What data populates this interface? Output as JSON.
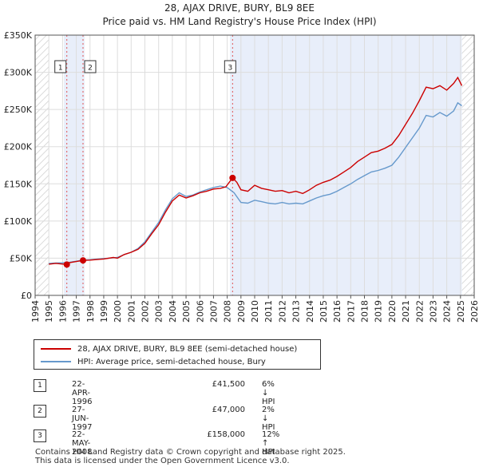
{
  "title_line1": "28, AJAX DRIVE, BURY, BL9 8EE",
  "title_line2": "Price paid vs. HM Land Registry's House Price Index (HPI)",
  "chart_data": {
    "type": "line",
    "y_ticks": [
      {
        "v": 0,
        "label": "£0"
      },
      {
        "v": 50000,
        "label": "£50K"
      },
      {
        "v": 100000,
        "label": "£100K"
      },
      {
        "v": 150000,
        "label": "£150K"
      },
      {
        "v": 200000,
        "label": "£200K"
      },
      {
        "v": 250000,
        "label": "£250K"
      },
      {
        "v": 300000,
        "label": "£300K"
      },
      {
        "v": 350000,
        "label": "£350K"
      }
    ],
    "x_ticks": [
      "1994",
      "1995",
      "1996",
      "1997",
      "1998",
      "1999",
      "2000",
      "2001",
      "2002",
      "2003",
      "2004",
      "2005",
      "2006",
      "2007",
      "2008",
      "2009",
      "2010",
      "2011",
      "2012",
      "2013",
      "2014",
      "2015",
      "2016",
      "2017",
      "2018",
      "2019",
      "2020",
      "2021",
      "2022",
      "2023",
      "2024",
      "2025",
      "2026"
    ],
    "xlim": [
      1994,
      2026
    ],
    "ylim": [
      0,
      350000
    ],
    "grid": true,
    "series": [
      {
        "name": "28, AJAX DRIVE, BURY, BL9 8EE (semi-detached house)",
        "color": "#cc0000",
        "points": [
          [
            1995.0,
            42000
          ],
          [
            1995.5,
            43000
          ],
          [
            1996.31,
            41500
          ],
          [
            1996.5,
            44000
          ],
          [
            1997.0,
            45500
          ],
          [
            1997.49,
            47000
          ],
          [
            1998.0,
            47500
          ],
          [
            1999.0,
            49000
          ],
          [
            1999.7,
            51000
          ],
          [
            2000.0,
            50000
          ],
          [
            2000.5,
            55000
          ],
          [
            2001.0,
            58000
          ],
          [
            2001.5,
            62000
          ],
          [
            2002.0,
            70000
          ],
          [
            2002.5,
            83000
          ],
          [
            2003.0,
            95000
          ],
          [
            2003.5,
            112000
          ],
          [
            2004.0,
            127000
          ],
          [
            2004.5,
            135000
          ],
          [
            2005.0,
            131000
          ],
          [
            2005.5,
            134000
          ],
          [
            2006.0,
            138000
          ],
          [
            2006.5,
            140000
          ],
          [
            2007.0,
            143000
          ],
          [
            2007.5,
            144000
          ],
          [
            2007.9,
            146000
          ],
          [
            2008.39,
            158000
          ],
          [
            2008.7,
            152000
          ],
          [
            2009.0,
            142000
          ],
          [
            2009.5,
            140000
          ],
          [
            2010.0,
            148000
          ],
          [
            2010.5,
            144000
          ],
          [
            2011.0,
            142000
          ],
          [
            2011.5,
            140000
          ],
          [
            2012.0,
            141000
          ],
          [
            2012.5,
            138000
          ],
          [
            2013.0,
            140000
          ],
          [
            2013.5,
            137000
          ],
          [
            2014.0,
            142000
          ],
          [
            2014.5,
            148000
          ],
          [
            2015.0,
            152000
          ],
          [
            2015.5,
            155000
          ],
          [
            2016.0,
            160000
          ],
          [
            2016.5,
            166000
          ],
          [
            2017.0,
            172000
          ],
          [
            2017.5,
            180000
          ],
          [
            2018.0,
            186000
          ],
          [
            2018.5,
            192000
          ],
          [
            2019.0,
            194000
          ],
          [
            2019.5,
            198000
          ],
          [
            2020.0,
            203000
          ],
          [
            2020.5,
            215000
          ],
          [
            2021.0,
            230000
          ],
          [
            2021.5,
            245000
          ],
          [
            2022.0,
            262000
          ],
          [
            2022.5,
            280000
          ],
          [
            2023.0,
            278000
          ],
          [
            2023.5,
            282000
          ],
          [
            2024.0,
            276000
          ],
          [
            2024.5,
            285000
          ],
          [
            2024.8,
            293000
          ],
          [
            2025.1,
            282000
          ]
        ]
      },
      {
        "name": "HPI: Average price, semi-detached house, Bury",
        "color": "#6699cc",
        "points": [
          [
            1995.0,
            43000
          ],
          [
            1995.5,
            43500
          ],
          [
            1996.0,
            43800
          ],
          [
            1996.5,
            44500
          ],
          [
            1997.0,
            46000
          ],
          [
            1997.5,
            47500
          ],
          [
            1998.0,
            48000
          ],
          [
            1999.0,
            49500
          ],
          [
            2000.0,
            51000
          ],
          [
            2000.5,
            55000
          ],
          [
            2001.0,
            58000
          ],
          [
            2001.5,
            63000
          ],
          [
            2002.0,
            72000
          ],
          [
            2002.5,
            85000
          ],
          [
            2003.0,
            98000
          ],
          [
            2003.5,
            115000
          ],
          [
            2004.0,
            130000
          ],
          [
            2004.5,
            138000
          ],
          [
            2005.0,
            133000
          ],
          [
            2005.5,
            135000
          ],
          [
            2006.0,
            139000
          ],
          [
            2006.5,
            142000
          ],
          [
            2007.0,
            145000
          ],
          [
            2007.5,
            147000
          ],
          [
            2008.0,
            145000
          ],
          [
            2008.5,
            138000
          ],
          [
            2009.0,
            125000
          ],
          [
            2009.5,
            124000
          ],
          [
            2010.0,
            128000
          ],
          [
            2010.5,
            126000
          ],
          [
            2011.0,
            124000
          ],
          [
            2011.5,
            123000
          ],
          [
            2012.0,
            125000
          ],
          [
            2012.5,
            123000
          ],
          [
            2013.0,
            124000
          ],
          [
            2013.5,
            123000
          ],
          [
            2014.0,
            127000
          ],
          [
            2014.5,
            131000
          ],
          [
            2015.0,
            134000
          ],
          [
            2015.5,
            136000
          ],
          [
            2016.0,
            140000
          ],
          [
            2016.5,
            145000
          ],
          [
            2017.0,
            150000
          ],
          [
            2017.5,
            156000
          ],
          [
            2018.0,
            161000
          ],
          [
            2018.5,
            166000
          ],
          [
            2019.0,
            168000
          ],
          [
            2019.5,
            171000
          ],
          [
            2020.0,
            175000
          ],
          [
            2020.5,
            186000
          ],
          [
            2021.0,
            199000
          ],
          [
            2021.5,
            212000
          ],
          [
            2022.0,
            225000
          ],
          [
            2022.5,
            242000
          ],
          [
            2023.0,
            240000
          ],
          [
            2023.5,
            246000
          ],
          [
            2024.0,
            241000
          ],
          [
            2024.5,
            248000
          ],
          [
            2024.8,
            259000
          ],
          [
            2025.1,
            255000
          ]
        ]
      }
    ],
    "sales": [
      {
        "id": "1",
        "x": 1996.31,
        "price": 41500
      },
      {
        "id": "2",
        "x": 1997.49,
        "price": 47000
      },
      {
        "id": "3",
        "x": 2008.39,
        "price": 158000
      }
    ],
    "shaded_spans": [
      [
        1996.1,
        1997.6
      ],
      [
        2008.2,
        2025.1
      ]
    ],
    "hatched_regions": [
      [
        1994.0,
        1995.0
      ],
      [
        2025.1,
        2026.0
      ]
    ]
  },
  "legend": {
    "red_label": "28, AJAX DRIVE, BURY, BL9 8EE (semi-detached house)",
    "blue_label": "HPI: Average price, semi-detached house, Bury",
    "red_color": "#cc0000",
    "blue_color": "#6699cc"
  },
  "transactions": [
    {
      "num": "1",
      "date": "22-APR-1996",
      "price": "£41,500",
      "hpi": "6% ↓ HPI"
    },
    {
      "num": "2",
      "date": "27-JUN-1997",
      "price": "£47,000",
      "hpi": "2% ↓ HPI"
    },
    {
      "num": "3",
      "date": "22-MAY-2008",
      "price": "£158,000",
      "hpi": "12% ↑ HPI"
    }
  ],
  "footer_line1": "Contains HM Land Registry data © Crown copyright and database right 2025.",
  "footer_line2": "This data is licensed under the Open Government Licence v3.0."
}
